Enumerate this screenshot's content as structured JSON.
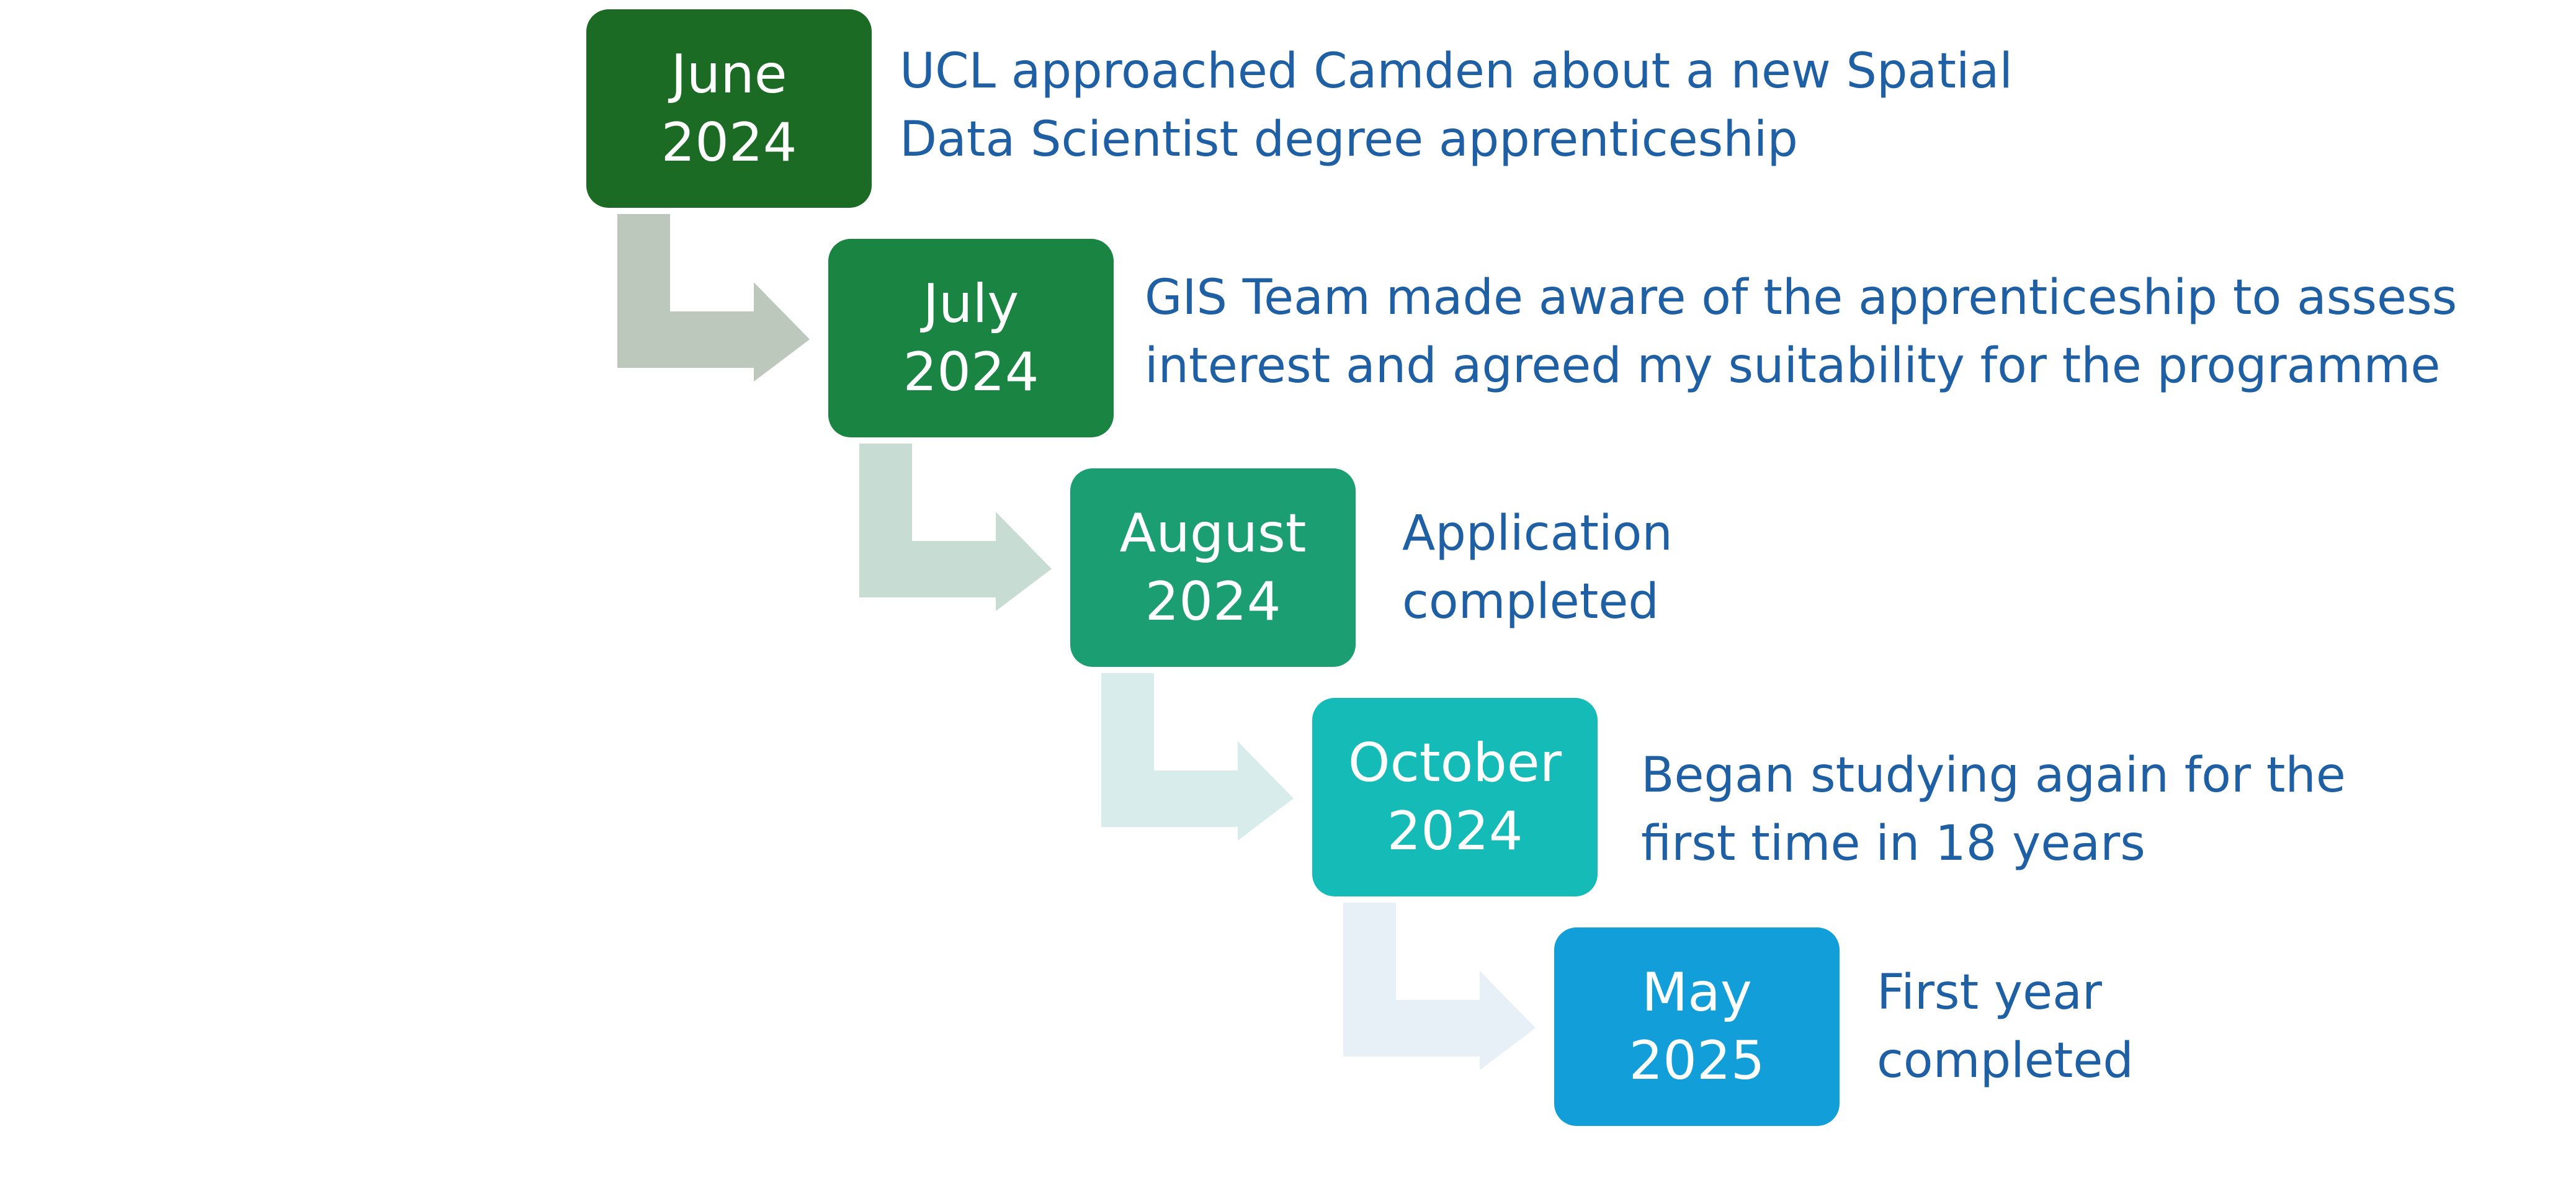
{
  "timeline": {
    "steps": [
      {
        "month": "June",
        "year": "2024",
        "color": "#1b6b24",
        "description": [
          "UCL approached Camden about a new Spatial",
          "Data Scientist degree apprenticeship"
        ]
      },
      {
        "month": "July",
        "year": "2024",
        "color": "#1a8443",
        "arrow_color": "#bdc8bd",
        "description": [
          "GIS Team made aware of the apprenticeship to assess",
          "interest and agreed my suitability for the programme"
        ]
      },
      {
        "month": "August",
        "year": "2024",
        "color": "#1c9e73",
        "arrow_color": "#c7ddd3",
        "description": [
          "Application",
          "completed"
        ]
      },
      {
        "month": "October",
        "year": "2024",
        "color": "#14bbb7",
        "arrow_color": "#d8ecec",
        "description": [
          "Began studying again for the",
          "first time in 18 years"
        ]
      },
      {
        "month": "May",
        "year": "2025",
        "color": "#119ed9",
        "arrow_color": "#e7eff7",
        "description": [
          "First year",
          "completed"
        ]
      }
    ]
  }
}
